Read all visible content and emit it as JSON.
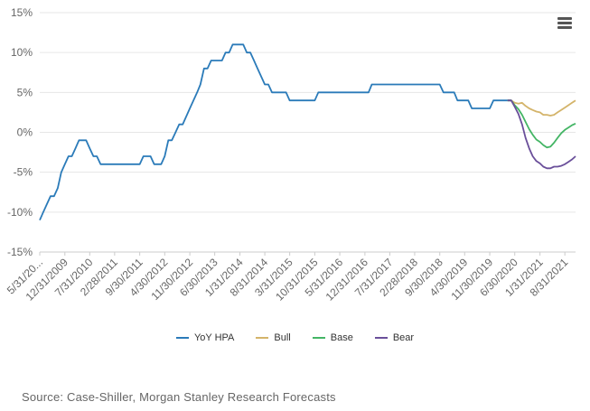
{
  "source_text": "Source: Case-Shiller, Morgan Stanley Research Forecasts",
  "chart_data": {
    "type": "line",
    "title": "",
    "xlabel": "",
    "ylabel": "",
    "y_ticks": [
      "15%",
      "10%",
      "5%",
      "0%",
      "-5%",
      "-10%",
      "-15%"
    ],
    "ylim": [
      -15,
      15
    ],
    "x_ticks": [
      "5/31/20...",
      "12/31/2009",
      "7/31/2010",
      "2/28/2011",
      "9/30/2011",
      "4/30/2012",
      "11/30/2012",
      "6/30/2013",
      "1/31/2014",
      "8/31/2014",
      "3/31/2015",
      "10/31/2015",
      "5/31/2016",
      "12/31/2016",
      "7/31/2017",
      "2/28/2018",
      "9/30/2018",
      "4/30/2019",
      "11/30/2019",
      "6/30/2020",
      "1/31/2021",
      "8/31/2021"
    ],
    "x_tick_dates": [
      "2009-05-31",
      "2009-12-31",
      "2010-07-31",
      "2011-02-28",
      "2011-09-30",
      "2012-04-30",
      "2012-11-30",
      "2013-06-30",
      "2014-01-31",
      "2014-08-31",
      "2015-03-31",
      "2015-10-31",
      "2016-05-31",
      "2016-12-31",
      "2017-07-31",
      "2018-02-28",
      "2018-09-30",
      "2019-04-30",
      "2019-11-30",
      "2020-06-30",
      "2021-01-31",
      "2021-08-31"
    ],
    "x_range": [
      "2009-05-31",
      "2021-11-30"
    ],
    "grid": true,
    "legend_position": "bottom",
    "series": [
      {
        "name": "YoY HPA",
        "color": "#2b7bb9",
        "points": [
          [
            "2009-05-31",
            -11
          ],
          [
            "2009-06-30",
            -10
          ],
          [
            "2009-07-31",
            -9
          ],
          [
            "2009-08-31",
            -8
          ],
          [
            "2009-09-30",
            -8
          ],
          [
            "2009-10-31",
            -7
          ],
          [
            "2009-11-30",
            -5
          ],
          [
            "2009-12-31",
            -4
          ],
          [
            "2010-01-31",
            -3
          ],
          [
            "2010-02-28",
            -3
          ],
          [
            "2010-03-31",
            -2
          ],
          [
            "2010-04-30",
            -1
          ],
          [
            "2010-05-31",
            -1
          ],
          [
            "2010-06-30",
            -1
          ],
          [
            "2010-07-31",
            -2
          ],
          [
            "2010-08-31",
            -3
          ],
          [
            "2010-09-30",
            -3
          ],
          [
            "2010-10-31",
            -4
          ],
          [
            "2010-11-30",
            -4
          ],
          [
            "2010-12-31",
            -4
          ],
          [
            "2011-01-31",
            -4
          ],
          [
            "2011-02-28",
            -4
          ],
          [
            "2011-03-31",
            -4
          ],
          [
            "2011-04-30",
            -4
          ],
          [
            "2011-05-31",
            -4
          ],
          [
            "2011-06-30",
            -4
          ],
          [
            "2011-07-31",
            -4
          ],
          [
            "2011-08-31",
            -4
          ],
          [
            "2011-09-30",
            -4
          ],
          [
            "2011-10-31",
            -3
          ],
          [
            "2011-11-30",
            -3
          ],
          [
            "2011-12-31",
            -3
          ],
          [
            "2012-01-31",
            -4
          ],
          [
            "2012-02-29",
            -4
          ],
          [
            "2012-03-31",
            -4
          ],
          [
            "2012-04-30",
            -3
          ],
          [
            "2012-05-31",
            -1
          ],
          [
            "2012-06-30",
            -1
          ],
          [
            "2012-07-31",
            0
          ],
          [
            "2012-08-31",
            1
          ],
          [
            "2012-09-30",
            1
          ],
          [
            "2012-10-31",
            2
          ],
          [
            "2012-11-30",
            3
          ],
          [
            "2012-12-31",
            4
          ],
          [
            "2013-01-31",
            5
          ],
          [
            "2013-02-28",
            6
          ],
          [
            "2013-03-31",
            8
          ],
          [
            "2013-04-30",
            8
          ],
          [
            "2013-05-31",
            9
          ],
          [
            "2013-06-30",
            9
          ],
          [
            "2013-07-31",
            9
          ],
          [
            "2013-08-31",
            9
          ],
          [
            "2013-09-30",
            10
          ],
          [
            "2013-10-31",
            10
          ],
          [
            "2013-11-30",
            11
          ],
          [
            "2013-12-31",
            11
          ],
          [
            "2014-01-31",
            11
          ],
          [
            "2014-02-28",
            11
          ],
          [
            "2014-03-31",
            10
          ],
          [
            "2014-04-30",
            10
          ],
          [
            "2014-05-31",
            9
          ],
          [
            "2014-06-30",
            8
          ],
          [
            "2014-07-31",
            7
          ],
          [
            "2014-08-31",
            6
          ],
          [
            "2014-09-30",
            6
          ],
          [
            "2014-10-31",
            5
          ],
          [
            "2014-11-30",
            5
          ],
          [
            "2014-12-31",
            5
          ],
          [
            "2015-01-31",
            5
          ],
          [
            "2015-02-28",
            5
          ],
          [
            "2015-03-31",
            4
          ],
          [
            "2015-04-30",
            4
          ],
          [
            "2015-05-31",
            4
          ],
          [
            "2015-06-30",
            4
          ],
          [
            "2015-07-31",
            4
          ],
          [
            "2015-08-31",
            4
          ],
          [
            "2015-09-30",
            4
          ],
          [
            "2015-10-31",
            4
          ],
          [
            "2015-11-30",
            5
          ],
          [
            "2015-12-31",
            5
          ],
          [
            "2016-01-31",
            5
          ],
          [
            "2016-06-30",
            5
          ],
          [
            "2016-12-31",
            5
          ],
          [
            "2017-01-31",
            5
          ],
          [
            "2017-02-28",
            6
          ],
          [
            "2017-06-30",
            6
          ],
          [
            "2017-12-31",
            6
          ],
          [
            "2018-06-30",
            6
          ],
          [
            "2018-09-30",
            6
          ],
          [
            "2018-10-31",
            5
          ],
          [
            "2018-11-30",
            5
          ],
          [
            "2018-12-31",
            5
          ],
          [
            "2019-01-31",
            5
          ],
          [
            "2019-02-28",
            4
          ],
          [
            "2019-03-31",
            4
          ],
          [
            "2019-04-30",
            4
          ],
          [
            "2019-05-31",
            4
          ],
          [
            "2019-06-30",
            3
          ],
          [
            "2019-07-31",
            3
          ],
          [
            "2019-08-31",
            3
          ],
          [
            "2019-09-30",
            3
          ],
          [
            "2019-10-31",
            3
          ],
          [
            "2019-11-30",
            3
          ],
          [
            "2019-12-31",
            4
          ],
          [
            "2020-01-31",
            4
          ],
          [
            "2020-02-29",
            4
          ],
          [
            "2020-03-31",
            4
          ],
          [
            "2020-04-30",
            4
          ],
          [
            "2020-05-31",
            4
          ]
        ]
      },
      {
        "name": "Bull",
        "color": "#d4b46a",
        "points": [
          [
            "2020-04-30",
            4
          ],
          [
            "2020-05-31",
            4
          ],
          [
            "2020-06-30",
            3.7
          ],
          [
            "2020-07-31",
            3.6
          ],
          [
            "2020-08-31",
            3.7
          ],
          [
            "2020-09-30",
            3.3
          ],
          [
            "2020-10-31",
            3.0
          ],
          [
            "2020-11-30",
            2.8
          ],
          [
            "2020-12-31",
            2.6
          ],
          [
            "2021-01-31",
            2.5
          ],
          [
            "2021-02-28",
            2.2
          ],
          [
            "2021-03-31",
            2.2
          ],
          [
            "2021-04-30",
            2.1
          ],
          [
            "2021-05-31",
            2.2
          ],
          [
            "2021-06-30",
            2.5
          ],
          [
            "2021-07-31",
            2.8
          ],
          [
            "2021-08-31",
            3.1
          ],
          [
            "2021-09-30",
            3.4
          ],
          [
            "2021-10-31",
            3.7
          ],
          [
            "2021-11-30",
            4.0
          ]
        ]
      },
      {
        "name": "Base",
        "color": "#44b565",
        "points": [
          [
            "2020-04-30",
            4
          ],
          [
            "2020-05-31",
            4
          ],
          [
            "2020-06-30",
            3.4
          ],
          [
            "2020-07-31",
            2.9
          ],
          [
            "2020-08-31",
            2.2
          ],
          [
            "2020-09-30",
            1.3
          ],
          [
            "2020-10-31",
            0.4
          ],
          [
            "2020-11-30",
            -0.3
          ],
          [
            "2020-12-31",
            -0.9
          ],
          [
            "2021-01-31",
            -1.2
          ],
          [
            "2021-02-28",
            -1.6
          ],
          [
            "2021-03-31",
            -1.9
          ],
          [
            "2021-04-30",
            -1.8
          ],
          [
            "2021-05-31",
            -1.3
          ],
          [
            "2021-06-30",
            -0.7
          ],
          [
            "2021-07-31",
            -0.1
          ],
          [
            "2021-08-31",
            0.3
          ],
          [
            "2021-09-30",
            0.6
          ],
          [
            "2021-10-31",
            0.9
          ],
          [
            "2021-11-30",
            1.1
          ]
        ]
      },
      {
        "name": "Bear",
        "color": "#6a4f9a",
        "points": [
          [
            "2020-04-30",
            4
          ],
          [
            "2020-05-31",
            4
          ],
          [
            "2020-06-30",
            3.2
          ],
          [
            "2020-07-31",
            2.3
          ],
          [
            "2020-08-31",
            1.0
          ],
          [
            "2020-09-30",
            -0.7
          ],
          [
            "2020-10-31",
            -2.0
          ],
          [
            "2020-11-30",
            -3.0
          ],
          [
            "2020-12-31",
            -3.6
          ],
          [
            "2021-01-31",
            -3.9
          ],
          [
            "2021-02-28",
            -4.3
          ],
          [
            "2021-03-31",
            -4.5
          ],
          [
            "2021-04-30",
            -4.5
          ],
          [
            "2021-05-31",
            -4.3
          ],
          [
            "2021-06-30",
            -4.3
          ],
          [
            "2021-07-31",
            -4.2
          ],
          [
            "2021-08-31",
            -4.0
          ],
          [
            "2021-09-30",
            -3.7
          ],
          [
            "2021-10-31",
            -3.4
          ],
          [
            "2021-11-30",
            -3.0
          ]
        ]
      }
    ]
  }
}
